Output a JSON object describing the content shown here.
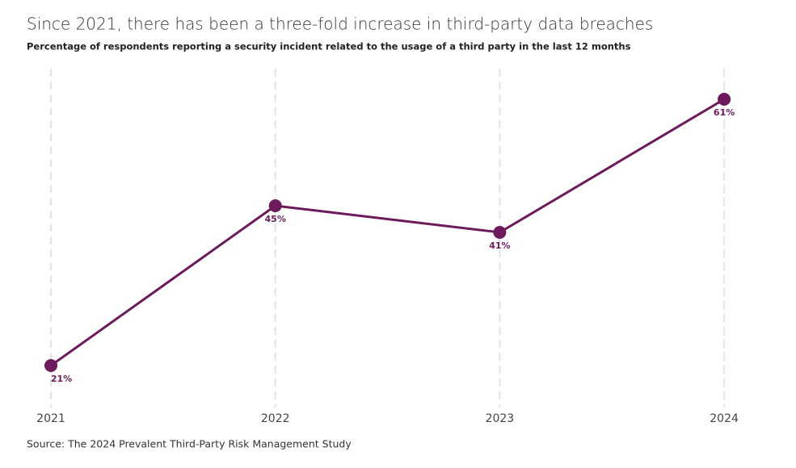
{
  "chart_data": {
    "type": "line",
    "title": "Since 2021, there has been a three-fold increase in third-party data breaches",
    "subtitle": "Percentage of respondents reporting a security incident related to the usage of a third party in the last 12 months",
    "source": "Source: The 2024 Prevalent Third-Party Risk Management Study",
    "categories": [
      "2021",
      "2022",
      "2023",
      "2024"
    ],
    "values": [
      21,
      45,
      41,
      61
    ],
    "value_labels": [
      "21%",
      "45%",
      "41%",
      "61%"
    ],
    "color": "#6d1a5c",
    "grid": true
  }
}
